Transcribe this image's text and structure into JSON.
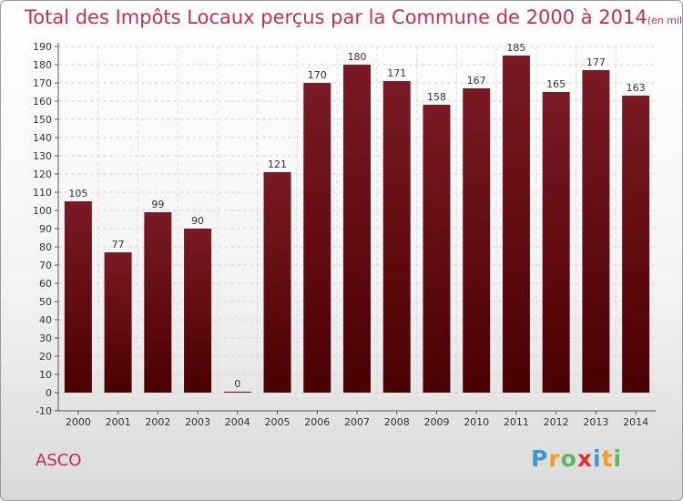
{
  "title": "Total des Impôts Locaux perçus par la Commune de 2000 à 2014",
  "unit": "(en milliers d'€)",
  "commune": "ASCO",
  "logo": {
    "letters": [
      {
        "char": "P",
        "color": "#3a9ad9"
      },
      {
        "char": "r",
        "color": "#f0a020"
      },
      {
        "char": "o",
        "color": "#5cb85c"
      },
      {
        "char": "x",
        "color": "#e03030"
      },
      {
        "char": "i",
        "color": "#3a9ad9"
      },
      {
        "char": "t",
        "color": "#f0a020"
      },
      {
        "char": "i",
        "color": "#5cb85c"
      }
    ]
  },
  "chart_data": {
    "type": "bar",
    "categories": [
      "2000",
      "2001",
      "2002",
      "2003",
      "2004",
      "2005",
      "2006",
      "2007",
      "2008",
      "2009",
      "2010",
      "2011",
      "2012",
      "2013",
      "2014"
    ],
    "values": [
      105,
      77,
      99,
      90,
      0,
      121,
      170,
      180,
      171,
      158,
      167,
      185,
      165,
      177,
      163
    ],
    "xlabel": "",
    "ylabel": "",
    "ylim": [
      -10,
      190
    ],
    "yticks": [
      -10,
      0,
      10,
      20,
      30,
      40,
      50,
      60,
      70,
      80,
      90,
      100,
      110,
      120,
      130,
      140,
      150,
      160,
      170,
      180,
      190
    ],
    "grid": true,
    "bar_color": "#7a1a24",
    "bar_color_bottom": "#4a0000"
  }
}
